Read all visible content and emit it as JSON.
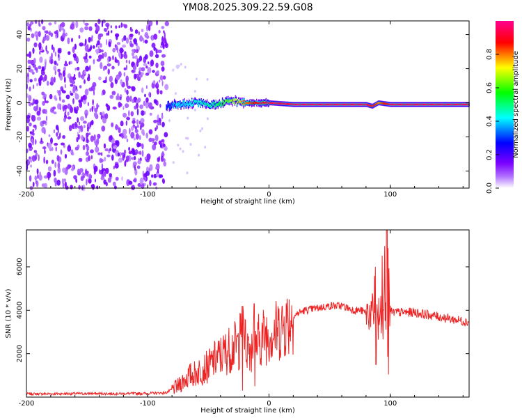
{
  "title": "YM08.2025.309.22.59.G08",
  "chart_data": [
    {
      "type": "heatmap",
      "xlabel": "Height of straight line (km)",
      "ylabel": "Frequency (Hz)",
      "xlim": [
        -200,
        165
      ],
      "ylim": [
        -50,
        48
      ],
      "xticks": [
        -200,
        -100,
        0,
        100
      ],
      "yticks": [
        -40,
        -20,
        0,
        20,
        40
      ],
      "noise_region_x": [
        -200,
        -84
      ],
      "signal_track": {
        "x": [
          -85,
          -75,
          -60,
          -45,
          -30,
          -20,
          -10,
          0,
          20,
          40,
          60,
          80,
          85,
          90,
          100,
          120,
          140,
          165
        ],
        "freq": [
          -2,
          -1,
          0,
          -1,
          1,
          0,
          0,
          0,
          -1,
          -1,
          -1,
          -1,
          -2,
          0,
          -1,
          -1,
          -1,
          -1
        ],
        "amplitude": [
          0.3,
          0.4,
          0.45,
          0.5,
          0.7,
          0.8,
          0.9,
          0.95,
          0.95,
          0.95,
          0.95,
          0.95,
          0.9,
          0.8,
          0.95,
          0.95,
          0.95,
          0.95
        ]
      },
      "colorbar": {
        "label": "Normalized spectral amplitude",
        "ticks": [
          0.0,
          0.2,
          0.4,
          0.6,
          0.8
        ],
        "tick_labels": [
          "0.0",
          "0.2",
          "0.4",
          "0.6",
          "0.8"
        ],
        "range": [
          0,
          1
        ],
        "colors": [
          "#ffffff",
          "#7a00ff",
          "#0000ff",
          "#00ffff",
          "#00ff00",
          "#ffff00",
          "#ff0000",
          "#ff0080"
        ]
      }
    },
    {
      "type": "line",
      "xlabel": "Height of straight line (km)",
      "ylabel": "SNR (10 * v/v)",
      "xlim": [
        -200,
        165
      ],
      "ylim": [
        0,
        7700
      ],
      "xticks": [
        -200,
        -100,
        0,
        100
      ],
      "yticks": [
        2000,
        4000,
        6000
      ],
      "series": [
        {
          "name": "SNR",
          "color": "#ee2222",
          "x": [
            -200,
            -180,
            -160,
            -140,
            -120,
            -100,
            -85,
            -75,
            -70,
            -65,
            -60,
            -55,
            -50,
            -45,
            -40,
            -35,
            -30,
            -25,
            -20,
            -15,
            -10,
            -5,
            0,
            5,
            10,
            15,
            20,
            25,
            30,
            40,
            50,
            60,
            65,
            70,
            75,
            80,
            85,
            88,
            90,
            92,
            94,
            96,
            98,
            100,
            110,
            120,
            130,
            140,
            150,
            160,
            165
          ],
          "y": [
            150,
            150,
            160,
            160,
            160,
            170,
            200,
            500,
            800,
            1000,
            1100,
            1300,
            1400,
            1700,
            1900,
            2100,
            2300,
            2400,
            2500,
            2300,
            2600,
            2800,
            3000,
            3000,
            3200,
            3500,
            3700,
            3900,
            4000,
            4100,
            4200,
            4200,
            4100,
            4000,
            4000,
            3900,
            3900,
            3800,
            4000,
            3800,
            3500,
            3600,
            3900,
            3900,
            3900,
            3900,
            3800,
            3700,
            3600,
            3500,
            3450
          ],
          "spikes": [
            {
              "x": -22,
              "min": 300,
              "max": 4200
            },
            {
              "x": -12,
              "min": 500,
              "max": 4300
            },
            {
              "x": 88,
              "min": 1500,
              "max": 6000
            },
            {
              "x": 95,
              "min": 900,
              "max": 7400
            },
            {
              "x": 97,
              "min": 800,
              "max": 7800
            }
          ]
        }
      ]
    }
  ]
}
